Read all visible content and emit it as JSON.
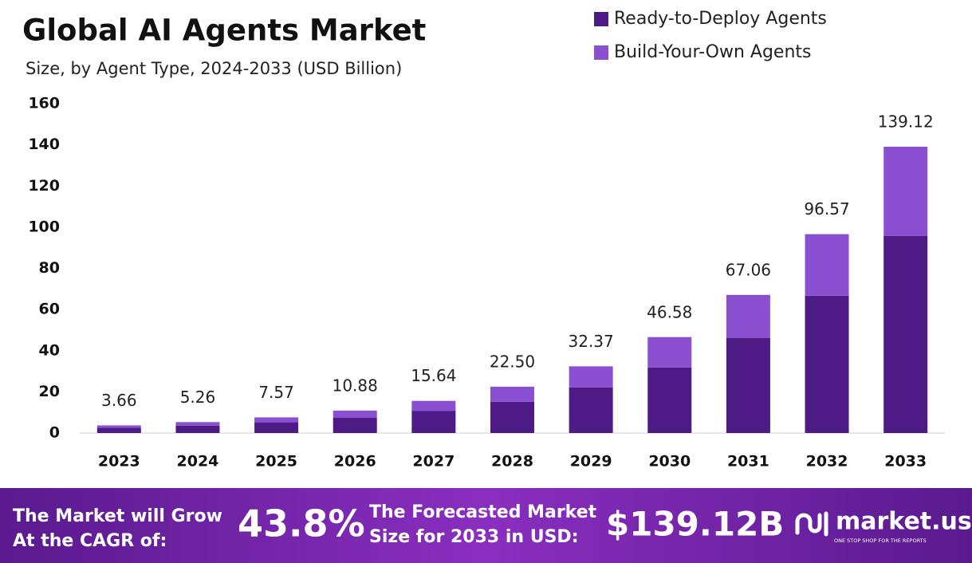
{
  "chart_data": {
    "type": "stacked-bar",
    "title": "Global AI Agents Market",
    "subtitle": "Size, by Agent Type, 2024-2033 (USD Billion)",
    "categories": [
      "2023",
      "2024",
      "2025",
      "2026",
      "2027",
      "2028",
      "2029",
      "2030",
      "2031",
      "2032",
      "2033"
    ],
    "series": [
      {
        "name": "Ready-to-Deploy Agents",
        "color": "#4e1a86",
        "values": [
          2.5,
          3.6,
          5.2,
          7.5,
          10.8,
          15.2,
          22.1,
          31.8,
          46.1,
          66.7,
          95.7
        ]
      },
      {
        "name": "Build-Your-Own Agents",
        "color": "#8b50d2",
        "values": [
          1.2,
          1.7,
          2.4,
          3.4,
          4.8,
          7.3,
          10.3,
          14.8,
          21.0,
          29.9,
          43.4
        ]
      }
    ],
    "totals": [
      3.66,
      5.26,
      7.57,
      10.88,
      15.64,
      22.5,
      32.37,
      46.58,
      67.06,
      96.57,
      139.12
    ],
    "total_labels": [
      "3.66",
      "5.26",
      "7.57",
      "10.88",
      "15.64",
      "22.50",
      "32.37",
      "46.58",
      "67.06",
      "96.57",
      "139.12"
    ],
    "ylim": [
      0,
      160
    ],
    "yticks": [
      0,
      20,
      40,
      60,
      80,
      100,
      120,
      140,
      160
    ],
    "grid": false,
    "legend": "top-right"
  },
  "footer": {
    "cagr_text": [
      "The Market will Grow",
      "At the CAGR of:"
    ],
    "cagr": "43.8%",
    "forecast_text": [
      "The Forecasted Market",
      "Size for 2033 in USD:"
    ],
    "forecast": "$139.12B",
    "brand": "market.us",
    "tagline": "ONE STOP SHOP FOR THE REPORTS"
  }
}
